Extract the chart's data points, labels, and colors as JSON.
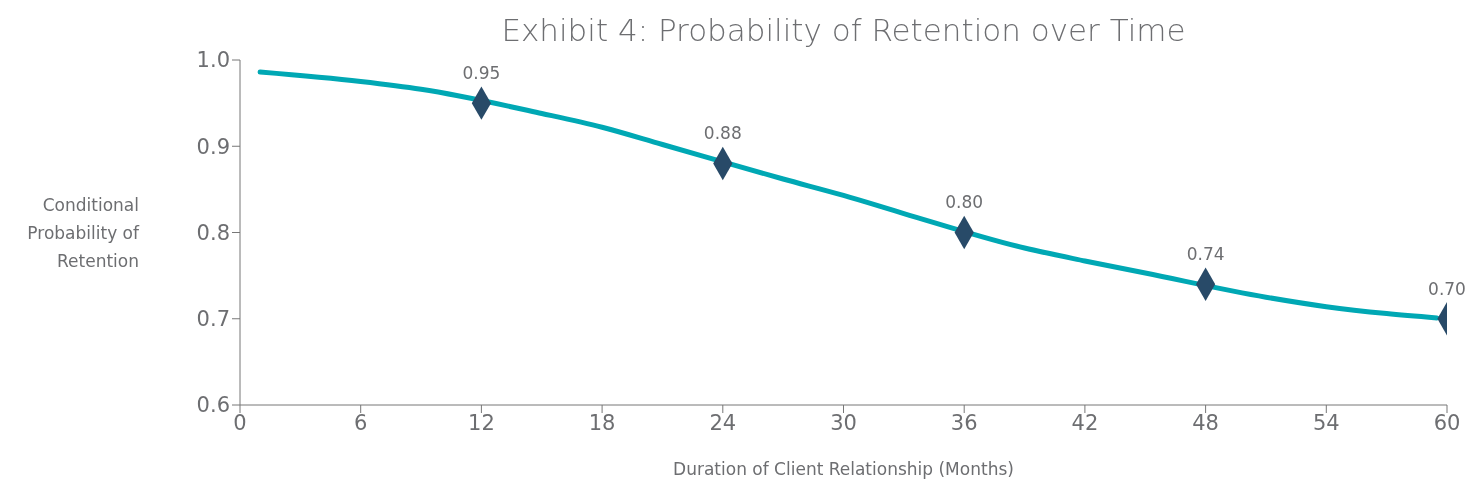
{
  "chart_data": {
    "type": "line",
    "title": "Exhibit 4: Probability of Retention over Time",
    "xlabel": "Duration of Client Relationship (Months)",
    "ylabel": "Conditional Probability of Retention",
    "xlim": [
      0,
      60
    ],
    "xticks": [
      0,
      6,
      12,
      18,
      24,
      30,
      36,
      42,
      48,
      54,
      60
    ],
    "ylim": [
      0.6,
      1.0
    ],
    "yticks": [
      0.6,
      0.7,
      0.8,
      0.9,
      {
        "value": 1.0,
        "label": "1.0"
      }
    ],
    "grid": false,
    "series": [
      {
        "type": "line",
        "color": "#00a8b4",
        "marker": "none",
        "line_style": "solid",
        "x": [
          1,
          6,
          9,
          15,
          18,
          21,
          27,
          30,
          33,
          39,
          42,
          45,
          51,
          54,
          57,
          59.5
        ],
        "values": [
          0.986,
          0.975,
          0.966,
          0.938,
          0.922,
          0.902,
          0.862,
          0.843,
          0.822,
          0.782,
          0.767,
          0.753,
          0.725,
          0.714,
          0.706,
          0.701
        ]
      },
      {
        "type": "scatter",
        "color": "#284a68",
        "marker": "diamond",
        "x": [
          12,
          24,
          36,
          48,
          60
        ],
        "values": [
          0.95,
          0.88,
          0.8,
          0.74,
          0.7
        ],
        "value_labels": [
          "0.95",
          "0.88",
          "0.80",
          "0.74",
          "0.70"
        ]
      }
    ]
  }
}
